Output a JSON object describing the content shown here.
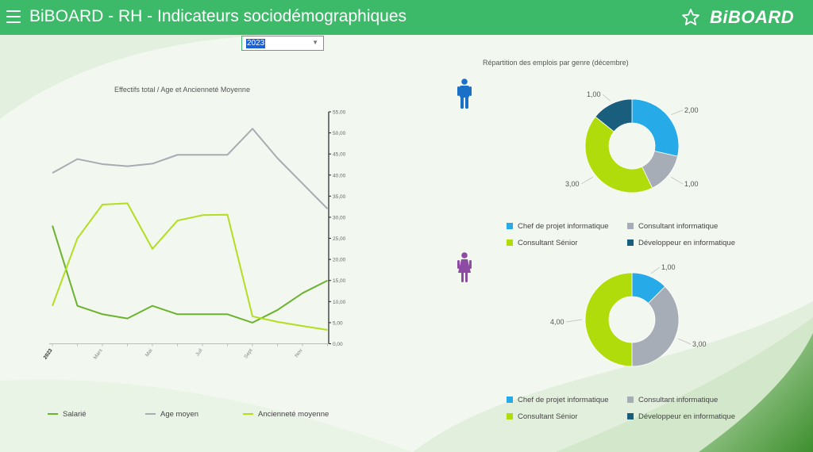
{
  "header": {
    "title": "BiBOARD - RH - Indicateurs sociodémographiques",
    "brand": "BiBOARD",
    "menu_icon": "hamburger-menu-icon",
    "favorite_icon": "star-icon"
  },
  "filter": {
    "selected": "2023"
  },
  "colors": {
    "header": "#3dba69",
    "salarie": "#6bb32e",
    "age": "#a8abb2",
    "anciennete": "#b3de1f",
    "chef": "#26aae8",
    "consultant": "#a7adb6",
    "senior": "#b1dc0c",
    "dev": "#1a5e7e",
    "male": "#1a6fc7",
    "female": "#8e4ba3"
  },
  "line_chart": {
    "title": "Effectifs total / Age et Ancienneté Moyenne",
    "chart_data": {
      "type": "line",
      "x": [
        "2023",
        "",
        "Mars",
        "",
        "Mai",
        "",
        "Juil",
        "",
        "Sept",
        "",
        "Nov",
        ""
      ],
      "series": [
        {
          "name": "Salarié",
          "values": [
            28,
            9,
            7,
            6,
            9,
            7,
            7,
            7,
            5,
            8,
            12,
            15
          ]
        },
        {
          "name": "Age moyen",
          "values": [
            40.5,
            43.8,
            42.6,
            42.1,
            42.7,
            44.8,
            44.8,
            44.8,
            51,
            44,
            38,
            32
          ]
        },
        {
          "name": "Ancienneté moyenne",
          "values": [
            9,
            25,
            33,
            33.3,
            22.5,
            29.2,
            30.5,
            30.6,
            6.5,
            5.2,
            4.2,
            3.3
          ]
        }
      ],
      "y_ticks": [
        "0,00",
        "5,00",
        "10,00",
        "15,00",
        "20,00",
        "25,00",
        "30,00",
        "35,00",
        "40,00",
        "45,00",
        "50,00",
        "55,00"
      ],
      "ylim": [
        0,
        55
      ]
    },
    "legend": [
      "Salarié",
      "Age moyen",
      "Ancienneté moyenne"
    ]
  },
  "donut_section": {
    "title": "Répartition des emplois par genre (décembre)",
    "male_icon": "male-person-icon",
    "female_icon": "female-person-icon",
    "chart_data": [
      {
        "type": "pie",
        "group": "male",
        "categories": [
          "Chef de projet informatique",
          "Consultant informatique",
          "Consultant Sénior",
          "Développeur en informatique"
        ],
        "values": [
          2,
          1,
          3,
          1
        ],
        "labels": [
          "2,00",
          "1,00",
          "3,00",
          "1,00"
        ]
      },
      {
        "type": "pie",
        "group": "female",
        "categories": [
          "Chef de projet informatique",
          "Consultant informatique",
          "Consultant Sénior",
          "Développeur en informatique"
        ],
        "values": [
          1,
          3,
          4,
          0
        ],
        "labels": [
          "1,00",
          "3,00",
          "4,00",
          ""
        ]
      }
    ],
    "legend": [
      "Chef de projet informatique",
      "Consultant informatique",
      "Consultant Sénior",
      "Développeur en informatique"
    ]
  }
}
